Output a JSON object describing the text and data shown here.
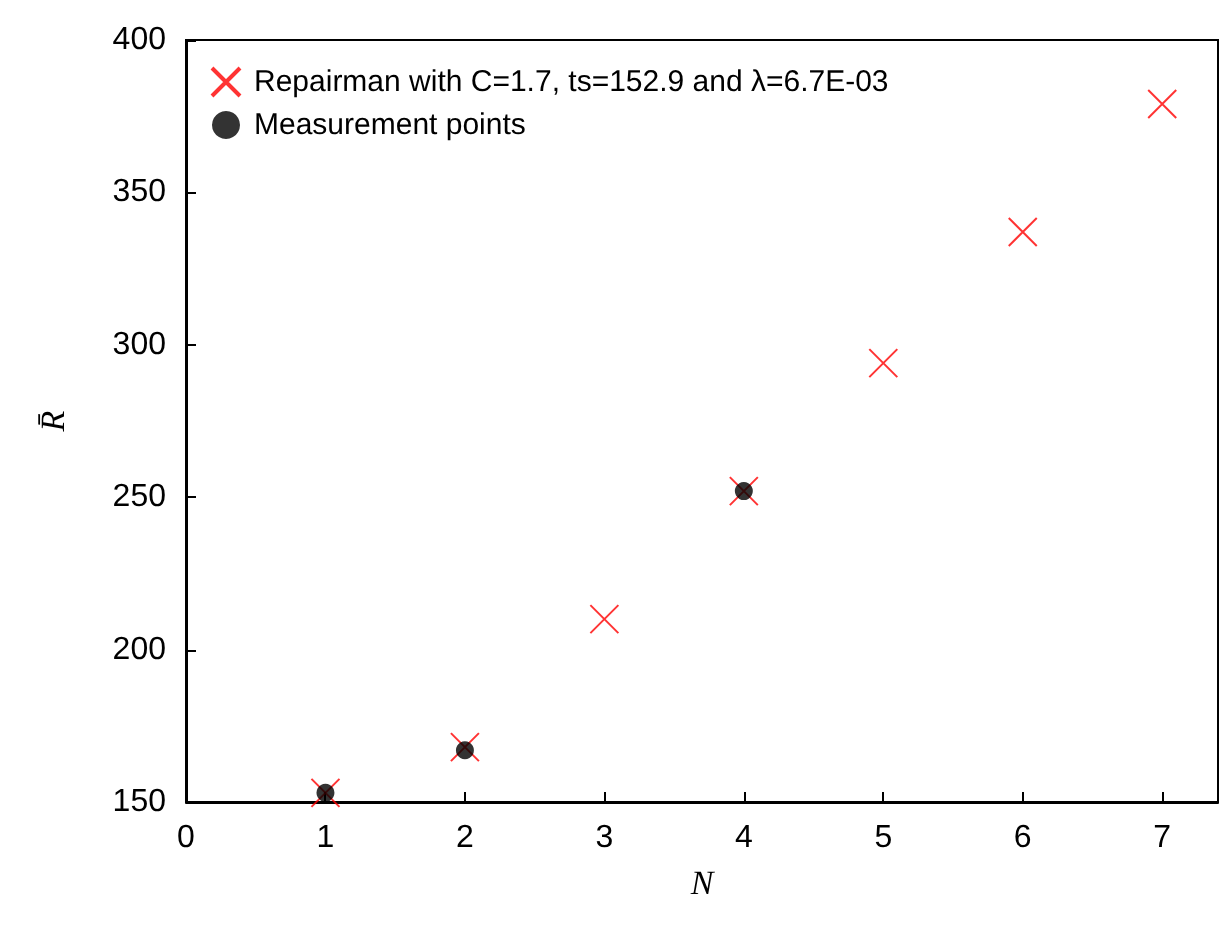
{
  "chart_data": {
    "type": "scatter",
    "xlabel": "N",
    "ylabel": "R̄",
    "xlim": [
      0,
      7.4
    ],
    "xticks": [
      0,
      1,
      2,
      3,
      4,
      5,
      6,
      7
    ],
    "ylim": [
      150,
      400
    ],
    "yticks": [
      150,
      200,
      250,
      300,
      350,
      400
    ],
    "grid": false,
    "legend": "top left",
    "series": [
      {
        "name": "Repairman with C=1.7, ts=152.9 and λ=6.7E-03",
        "color": "#ff0000",
        "marker": "cross",
        "x": [
          1,
          2,
          3,
          4,
          5,
          6,
          7
        ],
        "values": [
          153,
          168,
          210,
          252,
          294,
          337,
          379
        ]
      },
      {
        "name": "Measurement points",
        "color": "#000000",
        "marker": "circle",
        "x": [
          1,
          2,
          4
        ],
        "values": [
          153,
          167,
          252
        ]
      }
    ]
  }
}
